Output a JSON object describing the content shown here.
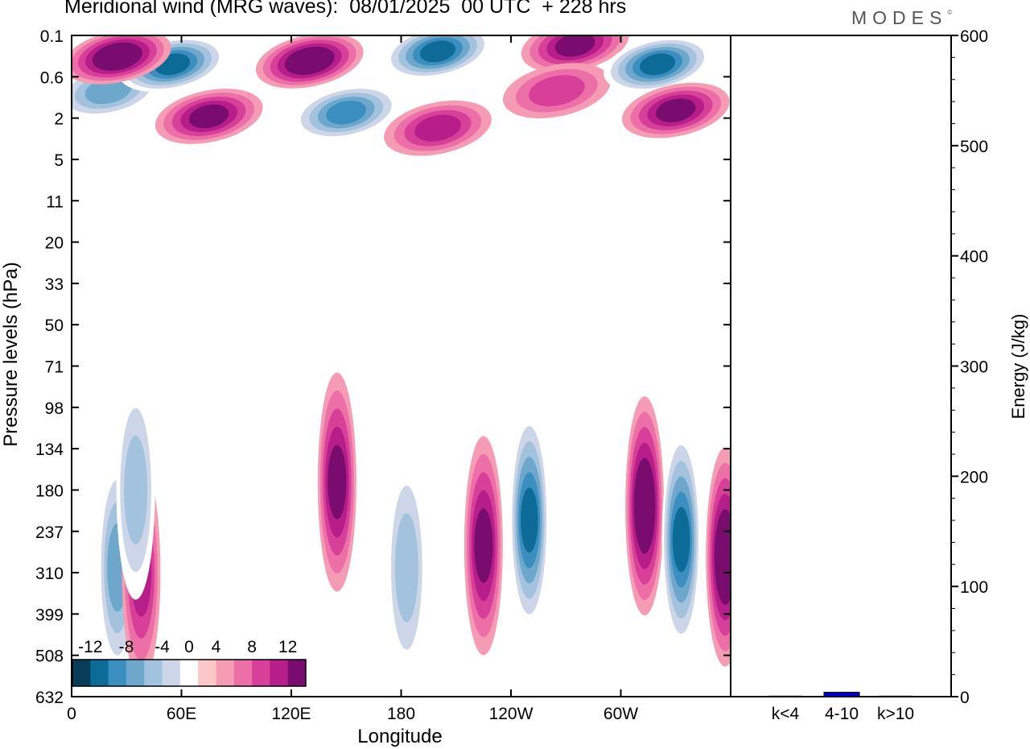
{
  "header": {
    "title": "Meridional wind (MRG waves):  08/01/2025  00 UTC  + 228 hrs",
    "brand": "MODES",
    "brand_mark": "©"
  },
  "chart_data": [
    {
      "type": "heatmap",
      "title": "Meridional wind (MRG waves):  08/01/2025  00 UTC  + 228 hrs",
      "xlabel": "Longitude",
      "ylabel": "Pressure levels (hPa)",
      "x_ticks": [
        "0",
        "60E",
        "120E",
        "180",
        "120W",
        "60W"
      ],
      "y_ticks": [
        "0.1",
        "0.6",
        "2",
        "5",
        "11",
        "20",
        "33",
        "50",
        "71",
        "98",
        "134",
        "180",
        "237",
        "310",
        "399",
        "508",
        "632"
      ],
      "colorbar": {
        "labels": [
          "-12",
          "-8",
          "-4",
          "0",
          "4",
          "8",
          "12"
        ],
        "levels": [
          -14,
          -12,
          -10,
          -8,
          -6,
          -4,
          -2,
          2,
          4,
          6,
          8,
          10,
          12,
          14
        ],
        "colors": [
          "#083d57",
          "#0d6b97",
          "#3a8fc0",
          "#6ea7cc",
          "#a3c2dd",
          "#cdd5e8",
          "#ffffff",
          "#fbc8c7",
          "#f59cb4",
          "#ec6fa8",
          "#d83f99",
          "#b81e8a",
          "#7a0c70"
        ]
      },
      "features": [
        {
          "kind": "neg",
          "lon": 20,
          "hpa": 0.9,
          "value": -10
        },
        {
          "kind": "neg",
          "lon": 55,
          "hpa": 0.35,
          "value": -14
        },
        {
          "kind": "pos",
          "lon": 25,
          "hpa": 0.25,
          "value": 14
        },
        {
          "kind": "pos",
          "lon": 75,
          "hpa": 1.9,
          "value": 12
        },
        {
          "kind": "pos",
          "lon": 130,
          "hpa": 0.3,
          "value": 14
        },
        {
          "kind": "neg",
          "lon": 150,
          "hpa": 1.7,
          "value": -12
        },
        {
          "kind": "neg",
          "lon": 200,
          "hpa": 0.2,
          "value": -14
        },
        {
          "kind": "pos",
          "lon": 200,
          "hpa": 2.5,
          "value": 10
        },
        {
          "kind": "pos",
          "lon": 275,
          "hpa": 0.15,
          "value": 12
        },
        {
          "kind": "pos",
          "lon": 265,
          "hpa": 0.9,
          "value": 8
        },
        {
          "kind": "neg",
          "lon": 320,
          "hpa": 0.35,
          "value": -14
        },
        {
          "kind": "pos",
          "lon": 330,
          "hpa": 1.6,
          "value": 12
        },
        {
          "kind": "neg",
          "lon": 25,
          "hpa": 300,
          "value": -10
        },
        {
          "kind": "pos",
          "lon": 38,
          "hpa": 310,
          "value": 10
        },
        {
          "kind": "neg",
          "lon": 35,
          "hpa": 180,
          "value": -8
        },
        {
          "kind": "pos",
          "lon": 145,
          "hpa": 170,
          "value": 12
        },
        {
          "kind": "neg",
          "lon": 183,
          "hpa": 300,
          "value": -8
        },
        {
          "kind": "pos",
          "lon": 225,
          "hpa": 260,
          "value": 12
        },
        {
          "kind": "neg",
          "lon": 250,
          "hpa": 220,
          "value": -14
        },
        {
          "kind": "pos",
          "lon": 313,
          "hpa": 200,
          "value": 14
        },
        {
          "kind": "neg",
          "lon": 333,
          "hpa": 250,
          "value": -14
        },
        {
          "kind": "pos",
          "lon": 357,
          "hpa": 280,
          "value": 14
        }
      ]
    },
    {
      "type": "bar",
      "categories": [
        "k<4",
        "4-10",
        "k>10"
      ],
      "values": [
        0.5,
        4,
        0.5
      ],
      "ylabel": "Energy (J/kg)",
      "ylim": [
        0,
        600
      ],
      "y_ticks": [
        "0",
        "100",
        "200",
        "300",
        "400",
        "500",
        "600"
      ],
      "bar_color": "#0000cc"
    }
  ]
}
